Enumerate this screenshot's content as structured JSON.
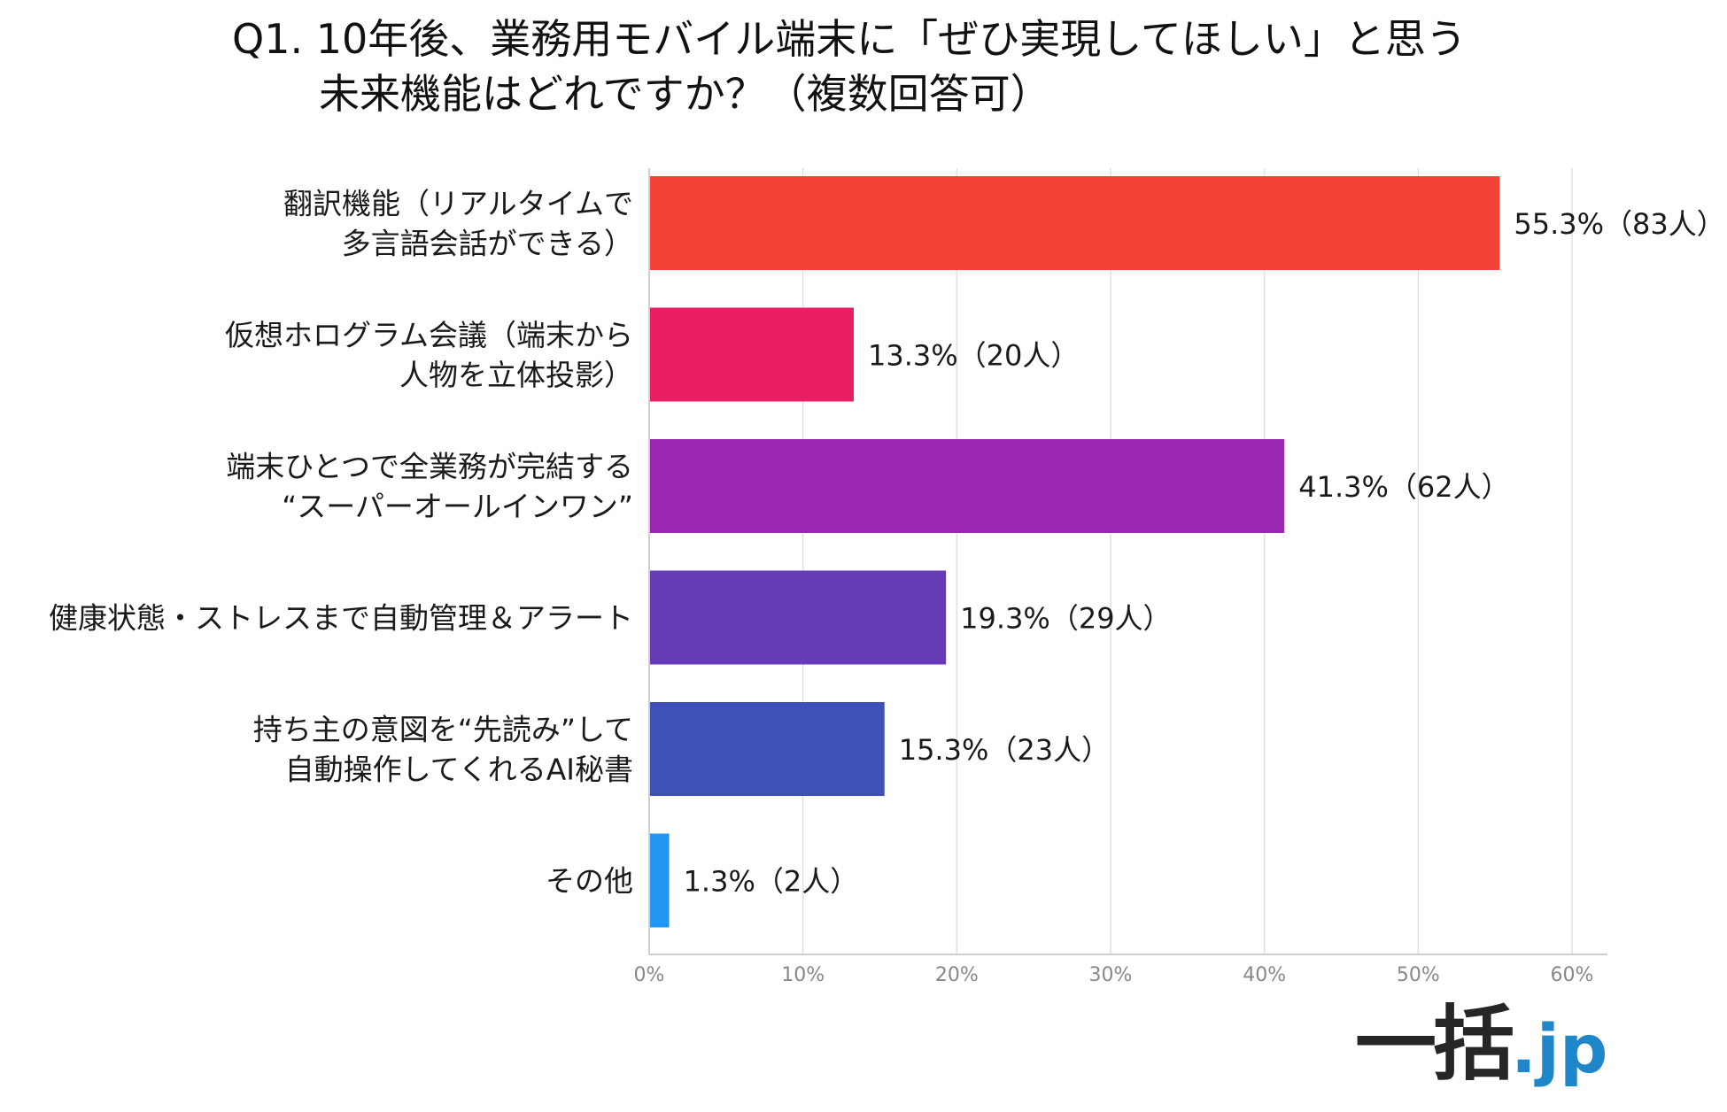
{
  "title": {
    "line1": "Q1. 10年後、業務用モバイル端末に「ぜひ実現してほしい」と思う",
    "line2": "未来機能はどれですか？（複数回答可）"
  },
  "chart_data": {
    "type": "bar",
    "orientation": "horizontal",
    "title": "Q1. 10年後、業務用モバイル端末に「ぜひ実現してほしい」と思う 未来機能はどれですか？（複数回答可）",
    "xlabel": "",
    "ylabel": "",
    "xlim": [
      0,
      60
    ],
    "ticks": [
      0,
      10,
      20,
      30,
      40,
      50,
      60
    ],
    "tick_labels": [
      "0%",
      "10%",
      "20%",
      "30%",
      "40%",
      "50%",
      "60%"
    ],
    "grid": true,
    "categories": [
      [
        "翻訳機能（リアルタイムで",
        "多言語会話ができる）"
      ],
      [
        "仮想ホログラム会議（端末から",
        "人物を立体投影）"
      ],
      [
        "端末ひとつで全業務が完結する",
        "“スーパーオールインワン”"
      ],
      [
        "健康状態・ストレスまで自動管理＆アラート"
      ],
      [
        "持ち主の意図を“先読み”して",
        "自動操作してくれるAI秘書"
      ],
      [
        "その他"
      ]
    ],
    "values": [
      55.3,
      13.3,
      41.3,
      19.3,
      15.3,
      1.3
    ],
    "data_labels": [
      "55.3%（83人）",
      "13.3%（20人）",
      "41.3%（62人）",
      "19.3%（29人）",
      "15.3%（23人）",
      "1.3%（2人）"
    ],
    "colors": [
      "#f44336",
      "#e91e63",
      "#9c27b0",
      "#673ab7",
      "#3f51b5",
      "#2196f3"
    ]
  },
  "logo": {
    "main": "一括",
    "suffix": ".jp"
  },
  "style": {
    "grid_color": "#e0e0e0",
    "axis_color": "#cfcfcf"
  }
}
